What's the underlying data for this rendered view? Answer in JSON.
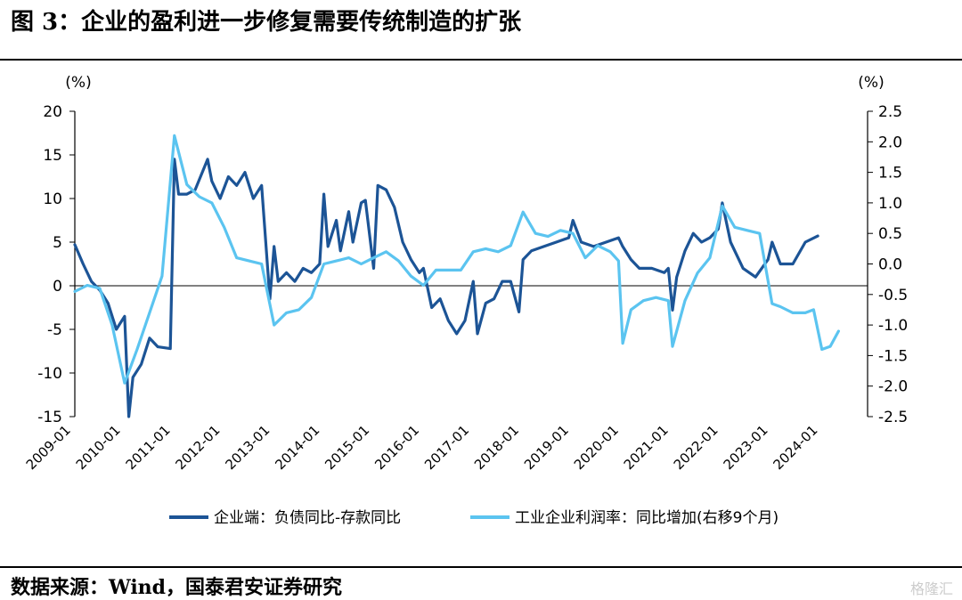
{
  "title": "图 3：企业的盈利进一步修复需要传统制造的扩张",
  "source": "数据来源：Wind，国泰君安证券研究",
  "watermark": "格隆汇",
  "colors": {
    "series1": "#1c5496",
    "series2": "#5bc4f0"
  },
  "chart_data": {
    "type": "line",
    "legend_position": "bottom",
    "y_left": {
      "unit": "(%)",
      "ylim": [
        -15,
        20
      ],
      "ticks": [
        20,
        15,
        10,
        5,
        0,
        -5,
        -10,
        -15
      ]
    },
    "y_right": {
      "unit": "(%)",
      "ylim": [
        -2.5,
        2.5
      ],
      "ticks": [
        "2.5",
        "2.0",
        "1.5",
        "1.0",
        "0.5",
        "0.0",
        "-0.5",
        "-1.0",
        "-1.5",
        "-2.0",
        "-2.5"
      ]
    },
    "x_ticks": [
      "2009-01",
      "2010-01",
      "2011-01",
      "2012-01",
      "2013-01",
      "2014-01",
      "2015-01",
      "2016-01",
      "2017-01",
      "2018-01",
      "2019-01",
      "2020-01",
      "2021-01",
      "2022-01",
      "2023-01",
      "2024-01"
    ],
    "series": [
      {
        "name": "企业端：负债同比-存款同比",
        "axis": "left",
        "points": [
          [
            "2009-01",
            4.7
          ],
          [
            "2009-03",
            2.5
          ],
          [
            "2009-05",
            0.5
          ],
          [
            "2009-07",
            -0.5
          ],
          [
            "2009-09",
            -2
          ],
          [
            "2009-11",
            -5
          ],
          [
            "2010-01",
            -3.5
          ],
          [
            "2010-02",
            -15
          ],
          [
            "2010-03",
            -10.5
          ],
          [
            "2010-05",
            -9
          ],
          [
            "2010-07",
            -6
          ],
          [
            "2010-09",
            -7
          ],
          [
            "2010-12",
            -7.2
          ],
          [
            "2011-01",
            14.5
          ],
          [
            "2011-02",
            10.5
          ],
          [
            "2011-04",
            10.5
          ],
          [
            "2011-06",
            11
          ],
          [
            "2011-09",
            14.5
          ],
          [
            "2011-10",
            12
          ],
          [
            "2011-12",
            10
          ],
          [
            "2012-02",
            12.5
          ],
          [
            "2012-04",
            11.5
          ],
          [
            "2012-06",
            13
          ],
          [
            "2012-08",
            10
          ],
          [
            "2012-10",
            11.5
          ],
          [
            "2012-12",
            -1.5
          ],
          [
            "2013-01",
            4.5
          ],
          [
            "2013-02",
            0.5
          ],
          [
            "2013-04",
            1.5
          ],
          [
            "2013-06",
            0.5
          ],
          [
            "2013-08",
            2
          ],
          [
            "2013-10",
            1.5
          ],
          [
            "2013-12",
            2.5
          ],
          [
            "2014-01",
            10.5
          ],
          [
            "2014-02",
            4.5
          ],
          [
            "2014-04",
            7.5
          ],
          [
            "2014-05",
            4
          ],
          [
            "2014-07",
            8.5
          ],
          [
            "2014-08",
            5
          ],
          [
            "2014-10",
            9.5
          ],
          [
            "2014-11",
            9.8
          ],
          [
            "2015-01",
            2
          ],
          [
            "2015-02",
            11.5
          ],
          [
            "2015-04",
            11
          ],
          [
            "2015-06",
            9
          ],
          [
            "2015-08",
            5
          ],
          [
            "2015-10",
            3
          ],
          [
            "2015-12",
            1.5
          ],
          [
            "2016-01",
            2
          ],
          [
            "2016-03",
            -2.5
          ],
          [
            "2016-05",
            -1.5
          ],
          [
            "2016-07",
            -4
          ],
          [
            "2016-09",
            -5.5
          ],
          [
            "2016-11",
            -4
          ],
          [
            "2017-01",
            0.5
          ],
          [
            "2017-02",
            -5.5
          ],
          [
            "2017-04",
            -2
          ],
          [
            "2017-06",
            -1.5
          ],
          [
            "2017-08",
            0.5
          ],
          [
            "2017-10",
            0.5
          ],
          [
            "2017-12",
            -3
          ],
          [
            "2018-01",
            3
          ],
          [
            "2018-03",
            4
          ],
          [
            "2018-06",
            4.5
          ],
          [
            "2018-09",
            5
          ],
          [
            "2018-12",
            5.5
          ],
          [
            "2019-01",
            7.5
          ],
          [
            "2019-03",
            5
          ],
          [
            "2019-06",
            4.5
          ],
          [
            "2019-09",
            5
          ],
          [
            "2019-12",
            5.5
          ],
          [
            "2020-01",
            4.5
          ],
          [
            "2020-03",
            3
          ],
          [
            "2020-05",
            2
          ],
          [
            "2020-08",
            2
          ],
          [
            "2020-11",
            1.5
          ],
          [
            "2020-12",
            2
          ],
          [
            "2021-01",
            -2.8
          ],
          [
            "2021-02",
            1
          ],
          [
            "2021-04",
            4
          ],
          [
            "2021-06",
            6
          ],
          [
            "2021-08",
            5
          ],
          [
            "2021-10",
            5.5
          ],
          [
            "2021-12",
            6.5
          ],
          [
            "2022-01",
            9.5
          ],
          [
            "2022-03",
            5
          ],
          [
            "2022-06",
            2
          ],
          [
            "2022-09",
            1
          ],
          [
            "2022-12",
            3
          ],
          [
            "2023-01",
            5
          ],
          [
            "2023-03",
            2.5
          ],
          [
            "2023-06",
            2.5
          ],
          [
            "2023-09",
            5
          ],
          [
            "2023-12",
            5.7
          ]
        ]
      },
      {
        "name": "工业企业利润率：同比增加(右移9个月)",
        "axis": "right",
        "points": [
          [
            "2009-01",
            -0.45
          ],
          [
            "2009-04",
            -0.35
          ],
          [
            "2009-07",
            -0.4
          ],
          [
            "2009-10",
            -1
          ],
          [
            "2010-01",
            -1.95
          ],
          [
            "2010-04",
            -1.4
          ],
          [
            "2010-07",
            -0.8
          ],
          [
            "2010-10",
            -0.2
          ],
          [
            "2011-01",
            2.1
          ],
          [
            "2011-04",
            1.3
          ],
          [
            "2011-07",
            1.1
          ],
          [
            "2011-10",
            1
          ],
          [
            "2012-01",
            0.6
          ],
          [
            "2012-04",
            0.1
          ],
          [
            "2012-07",
            0.05
          ],
          [
            "2012-10",
            0
          ],
          [
            "2013-01",
            -1
          ],
          [
            "2013-04",
            -0.8
          ],
          [
            "2013-07",
            -0.75
          ],
          [
            "2013-10",
            -0.55
          ],
          [
            "2014-01",
            0
          ],
          [
            "2014-04",
            0.05
          ],
          [
            "2014-07",
            0.1
          ],
          [
            "2014-10",
            0
          ],
          [
            "2015-01",
            0.1
          ],
          [
            "2015-04",
            0.2
          ],
          [
            "2015-07",
            0.05
          ],
          [
            "2015-10",
            -0.2
          ],
          [
            "2016-01",
            -0.35
          ],
          [
            "2016-04",
            -0.1
          ],
          [
            "2016-07",
            -0.1
          ],
          [
            "2016-10",
            -0.1
          ],
          [
            "2017-01",
            0.2
          ],
          [
            "2017-04",
            0.25
          ],
          [
            "2017-07",
            0.2
          ],
          [
            "2017-10",
            0.3
          ],
          [
            "2018-01",
            0.85
          ],
          [
            "2018-04",
            0.5
          ],
          [
            "2018-07",
            0.45
          ],
          [
            "2018-10",
            0.55
          ],
          [
            "2019-01",
            0.5
          ],
          [
            "2019-04",
            0.1
          ],
          [
            "2019-07",
            0.3
          ],
          [
            "2019-10",
            0.2
          ],
          [
            "2019-12",
            0.05
          ],
          [
            "2020-01",
            -1.3
          ],
          [
            "2020-03",
            -0.75
          ],
          [
            "2020-06",
            -0.6
          ],
          [
            "2020-09",
            -0.55
          ],
          [
            "2020-12",
            -0.6
          ],
          [
            "2021-01",
            -1.35
          ],
          [
            "2021-04",
            -0.6
          ],
          [
            "2021-07",
            -0.15
          ],
          [
            "2021-10",
            0.1
          ],
          [
            "2022-01",
            0.95
          ],
          [
            "2022-04",
            0.6
          ],
          [
            "2022-07",
            0.55
          ],
          [
            "2022-10",
            0.5
          ],
          [
            "2023-01",
            -0.65
          ],
          [
            "2023-03",
            -0.7
          ],
          [
            "2023-06",
            -0.8
          ],
          [
            "2023-09",
            -0.8
          ],
          [
            "2023-11",
            -0.75
          ],
          [
            "2024-01",
            -1.4
          ],
          [
            "2024-03",
            -1.35
          ],
          [
            "2024-05",
            -1.1
          ]
        ]
      }
    ]
  }
}
